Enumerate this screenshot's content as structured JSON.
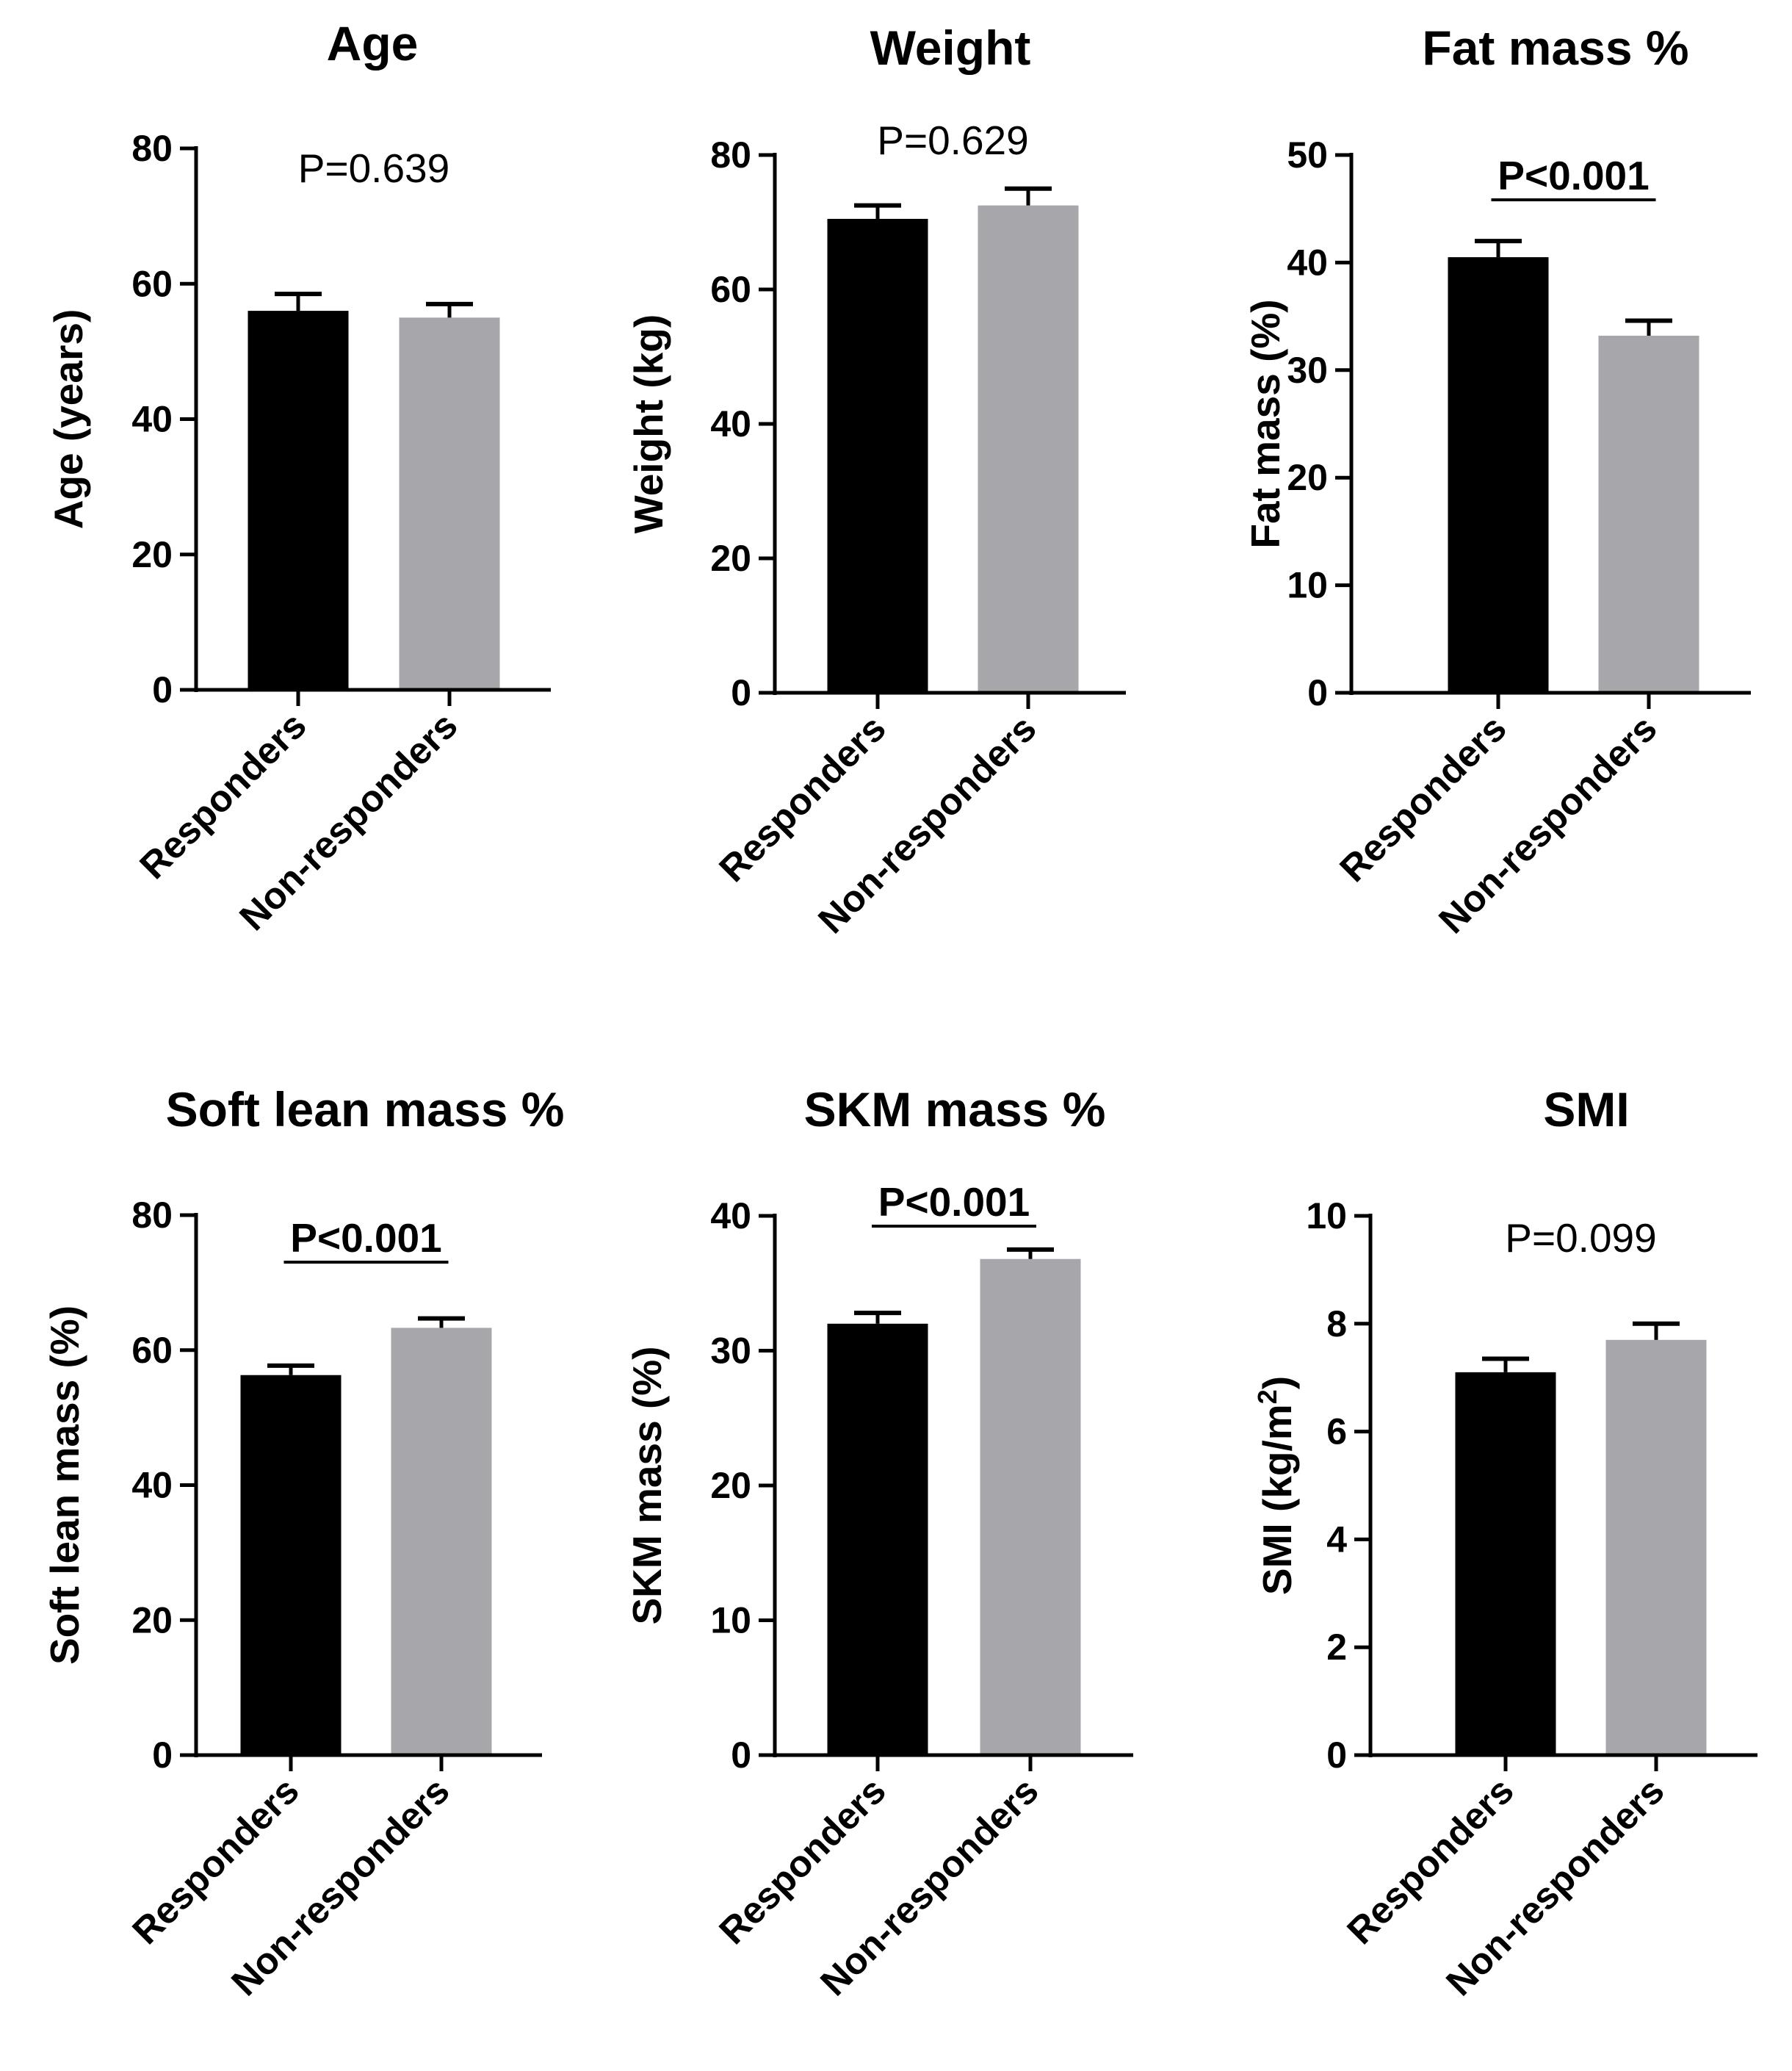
{
  "figure": {
    "bar_colors": {
      "Responders": "#000000",
      "Non-responders": "#a7a6ab"
    },
    "axis_color": "#000000"
  },
  "chart_data": [
    {
      "type": "bar",
      "title": "Age",
      "ylabel": "Age (years)",
      "ylabel_superscript": "",
      "ylabel_suffix": "",
      "categories": [
        "Responders",
        "Non-responders"
      ],
      "values": [
        56,
        55
      ],
      "errors": [
        2.5,
        2
      ],
      "ylim": [
        0,
        80
      ],
      "yticks": [
        0,
        20,
        40,
        60,
        80
      ],
      "p_value": "P=0.639",
      "significant": false
    },
    {
      "type": "bar",
      "title": "Weight",
      "ylabel": "Weight (kg)",
      "ylabel_superscript": "",
      "ylabel_suffix": "",
      "categories": [
        "Responders",
        "Non-responders"
      ],
      "values": [
        70.5,
        72.5
      ],
      "errors": [
        2,
        2.5
      ],
      "ylim": [
        0,
        80
      ],
      "yticks": [
        0,
        20,
        40,
        60,
        80
      ],
      "p_value": "P=0.629",
      "significant": false
    },
    {
      "type": "bar",
      "title": "Fat mass %",
      "ylabel": "Fat mass (%)",
      "ylabel_superscript": "",
      "ylabel_suffix": "",
      "categories": [
        "Responders",
        "Non-responders"
      ],
      "values": [
        40.5,
        33.2
      ],
      "errors": [
        1.5,
        1.4
      ],
      "ylim": [
        0,
        50
      ],
      "yticks": [
        0,
        10,
        20,
        30,
        40,
        50
      ],
      "p_value": "P<0.001",
      "significant": true
    },
    {
      "type": "bar",
      "title": "Soft lean mass %",
      "ylabel": "Soft lean mass (%)",
      "ylabel_superscript": "",
      "ylabel_suffix": "",
      "categories": [
        "Responders",
        "Non-responders"
      ],
      "values": [
        56.3,
        63.3
      ],
      "errors": [
        1.4,
        1.4
      ],
      "ylim": [
        0,
        80
      ],
      "yticks": [
        0,
        20,
        40,
        60,
        80
      ],
      "p_value": "P<0.001",
      "significant": true
    },
    {
      "type": "bar",
      "title": "SKM mass %",
      "ylabel": "SKM mass (%)",
      "ylabel_superscript": "",
      "ylabel_suffix": "",
      "categories": [
        "Responders",
        "Non-responders"
      ],
      "values": [
        32,
        36.8
      ],
      "errors": [
        0.8,
        0.7
      ],
      "ylim": [
        0,
        40
      ],
      "yticks": [
        0,
        10,
        20,
        30,
        40
      ],
      "p_value": "P<0.001",
      "significant": true
    },
    {
      "type": "bar",
      "title": "SMI",
      "ylabel": "SMI (kg/m",
      "ylabel_superscript": "2",
      "ylabel_suffix": ")",
      "categories": [
        "Responders",
        "Non-responders"
      ],
      "values": [
        7.1,
        7.7
      ],
      "errors": [
        0.25,
        0.3
      ],
      "ylim": [
        0,
        10
      ],
      "yticks": [
        0,
        2,
        4,
        6,
        8,
        10
      ],
      "p_value": "P=0.099",
      "significant": false
    }
  ]
}
